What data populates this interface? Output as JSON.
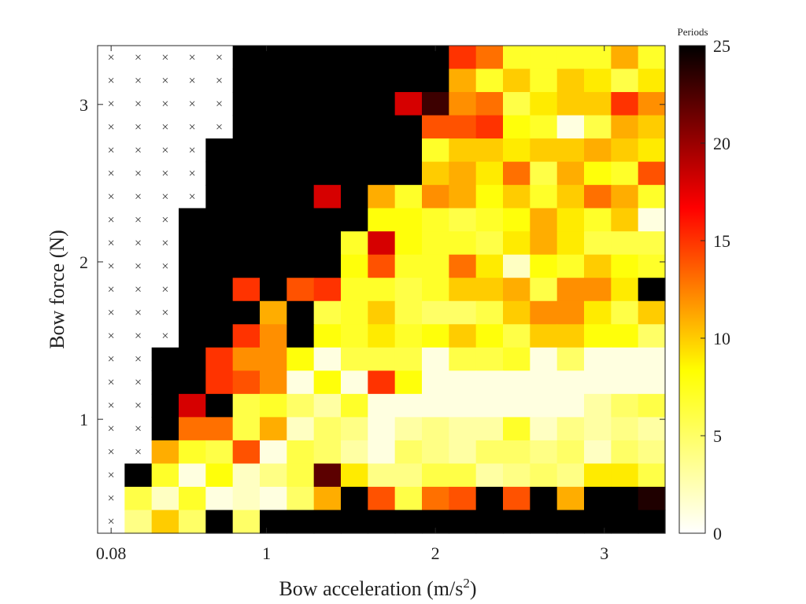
{
  "chart_data": {
    "type": "heatmap",
    "title": "",
    "xlabel": "Bow acceleration (m/s",
    "xlabel_sup": "2",
    "xlabel_end": ")",
    "ylabel": "Bow force (N)",
    "x_ticks": [
      {
        "value": 0.08,
        "label": "0.08"
      },
      {
        "value": 1,
        "label": "1"
      },
      {
        "value": 2,
        "label": "2"
      },
      {
        "value": 3,
        "label": "3"
      }
    ],
    "y_ticks": [
      {
        "value": 1,
        "label": "1"
      },
      {
        "value": 2,
        "label": "2"
      },
      {
        "value": 3,
        "label": "3"
      }
    ],
    "x_start": 0.08,
    "x_step": 0.16,
    "y_start": 0.35,
    "y_step": 0.1475,
    "colorbar": {
      "label": "Periods",
      "min": 0,
      "max": 25,
      "ticks": [
        0,
        5,
        10,
        15,
        20,
        25
      ],
      "colormap": [
        "#ffffff",
        "#ffff00",
        "#ff0000",
        "#000000"
      ]
    },
    "missing_marker": "×",
    "grid_rows_top_to_bottom": [
      [
        null,
        null,
        null,
        null,
        null,
        25,
        25,
        25,
        25,
        25,
        25,
        25,
        25,
        15,
        13,
        7,
        7,
        7,
        7,
        11,
        7
      ],
      [
        null,
        null,
        null,
        null,
        null,
        25,
        25,
        25,
        25,
        25,
        25,
        25,
        25,
        11,
        7,
        10,
        7,
        10,
        9,
        6,
        9
      ],
      [
        null,
        null,
        null,
        null,
        null,
        25,
        25,
        25,
        25,
        25,
        25,
        18,
        23,
        12,
        13,
        6,
        9,
        10,
        10,
        15,
        12
      ],
      [
        null,
        null,
        null,
        null,
        null,
        25,
        25,
        25,
        25,
        25,
        25,
        25,
        14,
        14,
        15,
        8,
        7,
        1,
        6,
        11,
        10
      ],
      [
        null,
        null,
        null,
        null,
        25,
        25,
        25,
        25,
        25,
        25,
        25,
        25,
        7,
        10,
        10,
        9,
        10,
        10,
        11,
        10,
        9
      ],
      [
        null,
        null,
        null,
        null,
        25,
        25,
        25,
        25,
        25,
        25,
        25,
        25,
        10,
        11,
        9,
        13,
        6,
        11,
        8,
        7,
        14
      ],
      [
        null,
        null,
        null,
        null,
        25,
        25,
        25,
        25,
        18,
        25,
        11,
        7,
        12,
        11,
        8,
        10,
        7,
        10,
        13,
        11,
        7
      ],
      [
        null,
        null,
        null,
        25,
        25,
        25,
        25,
        25,
        25,
        25,
        8,
        8,
        7,
        6,
        7,
        8,
        11,
        9,
        7,
        10,
        1
      ],
      [
        null,
        null,
        null,
        25,
        25,
        25,
        25,
        25,
        25,
        7,
        18,
        8,
        7,
        7,
        6,
        9,
        11,
        9,
        6,
        6,
        6
      ],
      [
        null,
        null,
        null,
        25,
        25,
        25,
        25,
        25,
        25,
        8,
        14,
        7,
        7,
        13,
        9,
        2,
        8,
        7,
        10,
        8,
        7
      ],
      [
        null,
        null,
        null,
        25,
        25,
        15,
        25,
        14,
        15,
        7,
        7,
        6,
        7,
        10,
        10,
        11,
        6,
        12,
        12,
        9,
        25
      ],
      [
        null,
        null,
        null,
        25,
        25,
        25,
        11,
        25,
        6,
        7,
        10,
        6,
        5,
        5,
        6,
        10,
        12,
        12,
        9,
        6,
        10
      ],
      [
        null,
        null,
        null,
        25,
        25,
        15,
        12,
        25,
        8,
        7,
        9,
        7,
        8,
        10,
        8,
        6,
        10,
        10,
        8,
        8,
        5
      ],
      [
        null,
        null,
        25,
        25,
        15,
        12,
        12,
        8,
        1,
        6,
        6,
        6,
        1,
        6,
        6,
        7,
        1,
        5,
        1,
        1,
        1
      ],
      [
        null,
        null,
        25,
        25,
        15,
        14,
        12,
        1,
        8,
        1,
        15,
        8,
        1,
        1,
        1,
        1,
        1,
        1,
        1,
        1,
        1
      ],
      [
        null,
        null,
        25,
        18,
        25,
        6,
        7,
        5,
        3,
        7,
        1,
        1,
        1,
        1,
        1,
        1,
        1,
        1,
        3,
        5,
        6
      ],
      [
        null,
        null,
        25,
        13,
        13,
        6,
        11,
        2,
        5,
        4,
        1,
        3,
        4,
        3,
        3,
        7,
        2,
        4,
        3,
        4,
        3
      ],
      [
        null,
        null,
        11,
        7,
        6,
        14,
        1,
        6,
        5,
        3,
        1,
        5,
        4,
        3,
        5,
        5,
        4,
        5,
        2,
        5,
        4
      ],
      [
        null,
        25,
        7,
        1,
        8,
        2,
        4,
        6,
        22,
        9,
        4,
        4,
        6,
        6,
        3,
        4,
        5,
        4,
        9,
        9,
        6
      ],
      [
        null,
        6,
        2,
        7,
        1,
        2,
        1,
        5,
        11,
        25,
        14,
        6,
        13,
        14,
        25,
        14,
        25,
        11,
        25,
        25,
        24
      ],
      [
        null,
        4,
        10,
        5,
        25,
        5,
        25,
        25,
        25,
        25,
        25,
        25,
        25,
        25,
        25,
        25,
        25,
        25,
        25,
        25,
        25
      ]
    ]
  }
}
